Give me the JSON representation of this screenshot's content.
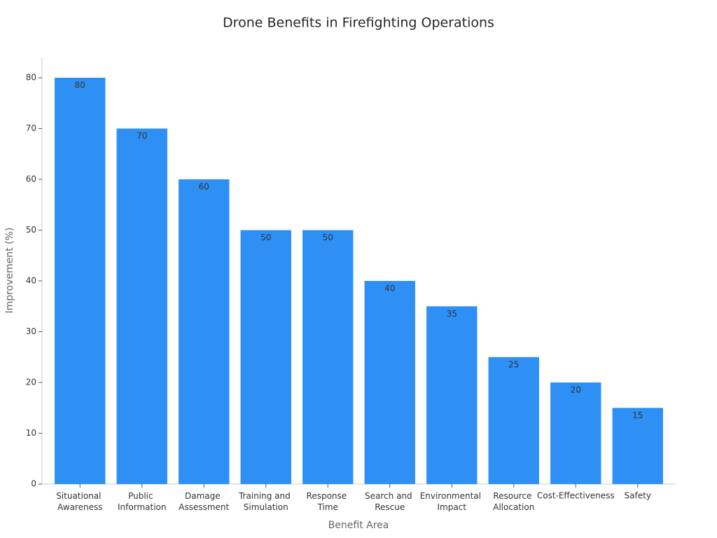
{
  "chart_data": {
    "type": "bar",
    "title": "Drone Benefits in Firefighting Operations",
    "x_label": "Benefit Area",
    "y_label": "Improvement (%)",
    "categories": [
      "Situational Awareness",
      "Public Information",
      "Damage Assessment",
      "Training and Simulation",
      "Response Time",
      "Search and Rescue",
      "Environmental Impact",
      "Resource Allocation",
      "Cost-Effectiveness",
      "Safety"
    ],
    "values": [
      80,
      70,
      60,
      50,
      50,
      40,
      35,
      25,
      20,
      15
    ],
    "color": "#2e90f5",
    "ylim": [
      0,
      84
    ],
    "yticks": [
      0,
      10,
      20,
      30,
      40,
      50,
      60,
      70,
      80
    ],
    "grid": false
  }
}
